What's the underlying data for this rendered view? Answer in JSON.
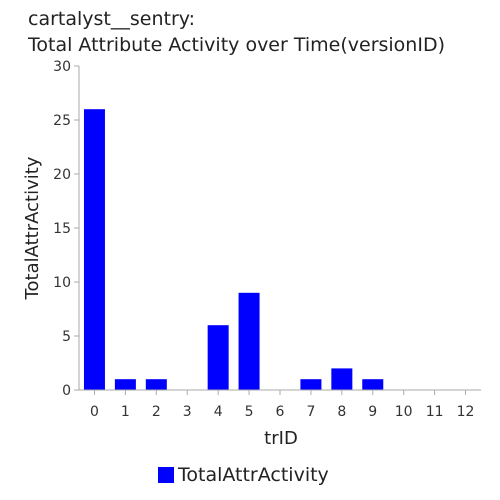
{
  "chart_data": {
    "type": "bar",
    "title_line1": "cartalyst__sentry:",
    "title_line2": "Total Attribute Activity over Time(versionID)",
    "xlabel": "trID",
    "ylabel": "TotalAttrActivity",
    "categories": [
      "0",
      "1",
      "2",
      "3",
      "4",
      "5",
      "6",
      "7",
      "8",
      "9",
      "10",
      "11",
      "12"
    ],
    "series": [
      {
        "name": "TotalAttrActivity",
        "values": [
          26,
          1,
          1,
          0,
          6,
          9,
          0,
          1,
          2,
          1,
          0,
          0,
          0
        ]
      }
    ],
    "ylim": [
      0,
      30
    ],
    "yticks": [
      0,
      5,
      10,
      15,
      20,
      25,
      30
    ],
    "bar_color": "#0000ff",
    "grid": false,
    "legend_position": "bottom"
  }
}
